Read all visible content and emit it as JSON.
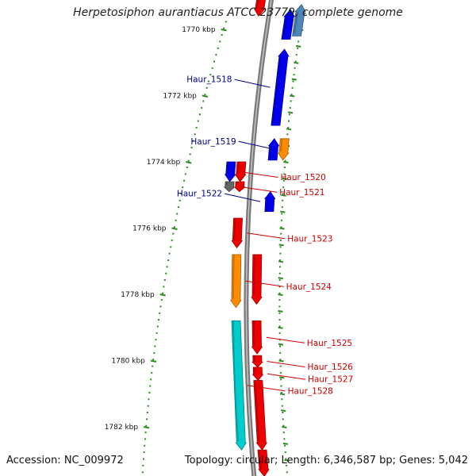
{
  "title": "Herpetosiphon aurantiacus ATCC 23779, complete genome",
  "footer": {
    "accession": "Accession: NC_009972",
    "summary": "Topology: circular; Length: 6,346,587 bp; Genes: 5,042"
  },
  "scale": {
    "unit": "kbp",
    "marks": [
      {
        "position_kbp": 1770,
        "label": "1770 kbp"
      },
      {
        "position_kbp": 1772,
        "label": "1772 kbp"
      },
      {
        "position_kbp": 1774,
        "label": "1774 kbp"
      },
      {
        "position_kbp": 1776,
        "label": "1776 kbp"
      },
      {
        "position_kbp": 1778,
        "label": "1778 kbp"
      },
      {
        "position_kbp": 1780,
        "label": "1780 kbp"
      },
      {
        "position_kbp": 1782,
        "label": "1782 kbp"
      }
    ]
  },
  "colors": {
    "backbone": "#888888",
    "scale_tick": "#2e8b22",
    "left_label": "#00008b",
    "right_label": "#cc0000",
    "blue": "#0000ee",
    "red": "#ee0000",
    "orange": "#ff8c00",
    "cyan": "#00cccc",
    "gray": "#666666",
    "steel": "#4f86b8"
  },
  "genes": [
    {
      "name": "",
      "start_kbp": 1769.25,
      "end_kbp": 1770.2,
      "strand": "-",
      "track": 3,
      "color": "steel",
      "label_side": "none"
    },
    {
      "name": "",
      "start_kbp": 1769.4,
      "end_kbp": 1770.3,
      "strand": "-",
      "track": 2,
      "color": "blue",
      "label_side": "none"
    },
    {
      "name": "",
      "start_kbp": 1768.8,
      "end_kbp": 1769.6,
      "strand": "+",
      "track": -1,
      "color": "red",
      "label_side": "none"
    },
    {
      "name": "Haur_1518",
      "start_kbp": 1770.6,
      "end_kbp": 1772.9,
      "strand": "-",
      "track": 2,
      "color": "blue",
      "label_side": "left"
    },
    {
      "name": "Haur_1519",
      "start_kbp": 1773.3,
      "end_kbp": 1773.95,
      "strand": "+",
      "track": 3,
      "color": "orange",
      "label_side": "left"
    },
    {
      "name": "",
      "start_kbp": 1773.3,
      "end_kbp": 1773.95,
      "strand": "-",
      "track": 2,
      "color": "blue",
      "label_side": "none"
    },
    {
      "name": "Haur_1520",
      "start_kbp": 1774.0,
      "end_kbp": 1774.6,
      "strand": "+",
      "track": -2,
      "color": "blue",
      "label_side": "right"
    },
    {
      "name": "",
      "start_kbp": 1774.0,
      "end_kbp": 1774.6,
      "strand": "+",
      "track": -1,
      "color": "red",
      "label_side": "none"
    },
    {
      "name": "",
      "start_kbp": 1774.6,
      "end_kbp": 1774.9,
      "strand": "+",
      "track": -1,
      "color": "red",
      "label_side": "none"
    },
    {
      "name": "Haur_1521",
      "start_kbp": 1774.6,
      "end_kbp": 1774.9,
      "strand": "+",
      "track": -2,
      "color": "gray",
      "label_side": "right"
    },
    {
      "name": "Haur_1522",
      "start_kbp": 1774.9,
      "end_kbp": 1775.5,
      "strand": "-",
      "track": 2,
      "color": "blue",
      "label_side": "left"
    },
    {
      "name": "Haur_1523",
      "start_kbp": 1775.7,
      "end_kbp": 1776.6,
      "strand": "+",
      "track": -1,
      "color": "red",
      "label_side": "right"
    },
    {
      "name": "",
      "start_kbp": 1776.8,
      "end_kbp": 1778.3,
      "strand": "+",
      "track": 1,
      "color": "red",
      "label_side": "none"
    },
    {
      "name": "Haur_1524",
      "start_kbp": 1776.8,
      "end_kbp": 1778.4,
      "strand": "+",
      "track": -1,
      "color": "orange",
      "label_side": "right"
    },
    {
      "name": "Haur_1525",
      "start_kbp": 1778.8,
      "end_kbp": 1779.8,
      "strand": "+",
      "track": 1,
      "color": "red",
      "label_side": "right"
    },
    {
      "name": "Haur_1526",
      "start_kbp": 1779.85,
      "end_kbp": 1780.2,
      "strand": "+",
      "track": 1,
      "color": "red",
      "label_side": "right"
    },
    {
      "name": "Haur_1527",
      "start_kbp": 1780.2,
      "end_kbp": 1780.6,
      "strand": "+",
      "track": 1,
      "color": "red",
      "label_side": "right"
    },
    {
      "name": "",
      "start_kbp": 1780.6,
      "end_kbp": 1782.7,
      "strand": "+",
      "track": 1,
      "color": "red",
      "label_side": "none"
    },
    {
      "name": "Haur_1528",
      "start_kbp": 1778.8,
      "end_kbp": 1782.7,
      "strand": "+",
      "track": -1,
      "color": "cyan",
      "label_side": "right"
    },
    {
      "name": "",
      "start_kbp": 1782.7,
      "end_kbp": 1783.5,
      "strand": "+",
      "track": 1,
      "color": "red",
      "label_side": "none"
    }
  ]
}
